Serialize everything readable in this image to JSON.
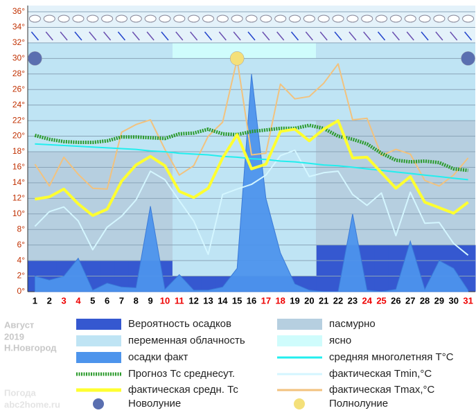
{
  "chart_data": {
    "type": "line",
    "categories": [
      "1",
      "2",
      "3",
      "4",
      "5",
      "6",
      "7",
      "8",
      "9",
      "10",
      "11",
      "12",
      "13",
      "14",
      "15",
      "16",
      "17",
      "18",
      "19",
      "20",
      "21",
      "22",
      "23",
      "24",
      "25",
      "26",
      "27",
      "28",
      "29",
      "30",
      "31"
    ],
    "category_colors": [
      "#000",
      "#000",
      "#e00",
      "#e00",
      "#000",
      "#000",
      "#000",
      "#000",
      "#000",
      "#e00",
      "#e00",
      "#000",
      "#000",
      "#000",
      "#000",
      "#000",
      "#e00",
      "#e00",
      "#000",
      "#000",
      "#000",
      "#000",
      "#000",
      "#e00",
      "#e00",
      "#000",
      "#000",
      "#000",
      "#000",
      "#000",
      "#e00"
    ],
    "ylim": [
      0,
      36
    ],
    "yticks": [
      {
        "value": 0,
        "label": "0°"
      },
      {
        "value": 2,
        "label": "2°"
      },
      {
        "value": 4,
        "label": "4°"
      },
      {
        "value": 6,
        "label": "6°"
      },
      {
        "value": 8,
        "label": "8°"
      },
      {
        "value": 10,
        "label": "10°"
      },
      {
        "value": 12,
        "label": "12°"
      },
      {
        "value": 14,
        "label": "14°"
      },
      {
        "value": 16,
        "label": "16°"
      },
      {
        "value": 18,
        "label": "18°"
      },
      {
        "value": 20,
        "label": "20°"
      },
      {
        "value": 22,
        "label": "22°"
      },
      {
        "value": 24,
        "label": "24°"
      },
      {
        "value": 26,
        "label": "26°"
      },
      {
        "value": 28,
        "label": "28°"
      },
      {
        "value": 30,
        "label": "30°"
      },
      {
        "value": 32,
        "label": "32°"
      },
      {
        "value": 34,
        "label": "34°"
      },
      {
        "value": 36,
        "label": "36°"
      }
    ],
    "grid": true,
    "series": [
      {
        "name": "Вероятность осадков",
        "color": "#3558d0",
        "style": "bars",
        "values": [
          4,
          4,
          4,
          4,
          4,
          4,
          4,
          4,
          4,
          4,
          2,
          2,
          2,
          2,
          2,
          2,
          2,
          2,
          2,
          2,
          6,
          6,
          6,
          6,
          6,
          6,
          6,
          6,
          6,
          6,
          6
        ]
      },
      {
        "name": "осадки факт",
        "color": "#4d94ec",
        "style": "area",
        "values": [
          2,
          1.5,
          2,
          4.3,
          0.2,
          1.1,
          0.6,
          0.5,
          11,
          0.3,
          2.2,
          0.2,
          0.2,
          0.6,
          3,
          28,
          12,
          5,
          1,
          0.2,
          0,
          0,
          10,
          0.2,
          0,
          0.3,
          6.5,
          0.3,
          4,
          3,
          0.2
        ]
      },
      {
        "name": "Прогноз Тс среднесут.",
        "color": "#2a9a2a",
        "style": "dotted",
        "values": [
          20.1,
          19.6,
          19.3,
          19.2,
          19.2,
          19.4,
          19.9,
          19.9,
          19.8,
          19.7,
          20.3,
          20.4,
          20.9,
          20.3,
          20.2,
          20.6,
          20.8,
          21,
          21,
          21.4,
          21,
          20,
          19.6,
          19,
          17.8,
          16.9,
          16.7,
          16.8,
          16.6,
          15.8,
          15.6
        ]
      },
      {
        "name": "фактическая средн. Тс",
        "color": "#ffff30",
        "style": "thick",
        "values": [
          11.9,
          12.2,
          13.2,
          11.3,
          9.8,
          10.6,
          14.2,
          16.3,
          17.4,
          16.2,
          12.9,
          12.1,
          13.3,
          17.2,
          20.2,
          15.8,
          16.4,
          20.6,
          20.9,
          19.4,
          20.9,
          22,
          17.2,
          17.3,
          15.3,
          13.3,
          14.8,
          11.5,
          10.8,
          10.1,
          11.5
        ]
      },
      {
        "name": "средняя многолетняя T°С",
        "color": "#22eeee",
        "style": "line",
        "values": [
          19,
          18.9,
          18.8,
          18.7,
          18.6,
          18.5,
          18.4,
          18.3,
          18.1,
          18,
          17.8,
          17.7,
          17.6,
          17.4,
          17.3,
          17.1,
          17,
          16.8,
          16.7,
          16.5,
          16.3,
          16.2,
          16,
          15.8,
          15.6,
          15.4,
          15.2,
          15,
          14.8,
          14.6,
          14.4
        ]
      },
      {
        "name": "фактическая Tmin,°С",
        "color": "#d4f6ff",
        "style": "line",
        "values": [
          8.4,
          10.3,
          10.9,
          9.1,
          5.4,
          8.3,
          9.7,
          11.8,
          15.5,
          14.4,
          11.7,
          9.1,
          4.8,
          12.5,
          13.2,
          13.8,
          15,
          17.5,
          18.2,
          14.8,
          15.3,
          15.5,
          12.5,
          11.1,
          12.7,
          7.2,
          12.8,
          8.8,
          8.9,
          6.2,
          4.7
        ]
      },
      {
        "name": "фактическая Tmax,°С",
        "color": "#f2c27e",
        "style": "line",
        "values": [
          16.4,
          13.6,
          17.3,
          15.1,
          13.3,
          13.2,
          20.5,
          21.5,
          22.1,
          18.3,
          15,
          16.2,
          20,
          21.8,
          29.9,
          17.6,
          17.8,
          26.7,
          24.8,
          25.1,
          26.8,
          29.3,
          22.1,
          22.3,
          17.5,
          18.3,
          17.7,
          14.3,
          13.6,
          15,
          17.2
        ]
      }
    ],
    "zones": [
      {
        "name": "пасмурно",
        "color": "#b6cfe0"
      },
      {
        "name": "переменная облачность",
        "color": "#bfe4f4"
      },
      {
        "name": "ясно",
        "color": "#cffcfc"
      }
    ],
    "moons": [
      {
        "name": "Новолуние",
        "color": "#5a6fb0",
        "days": [
          1,
          31
        ]
      },
      {
        "name": "Полнолуние",
        "color": "#f4e07a",
        "days": [
          15
        ]
      }
    ],
    "info": {
      "month": "Август",
      "year": "2019",
      "city": "Н.Новгород",
      "site_title": "Погода",
      "site": "abc2home.ru"
    }
  }
}
